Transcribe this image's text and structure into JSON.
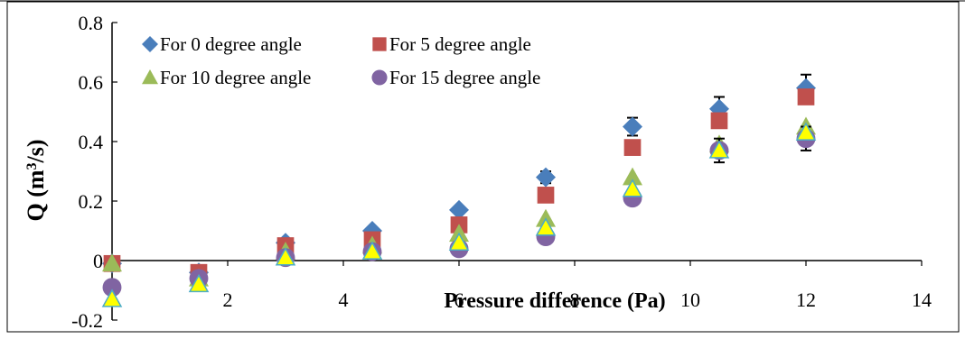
{
  "chart_data": {
    "type": "scatter",
    "xlabel": "Pressure difference (Pa)",
    "ylabel_main": "Q (m",
    "ylabel_sup": "3",
    "ylabel_end": "/s)",
    "xlim": [
      0,
      14
    ],
    "ylim": [
      -0.2,
      0.8
    ],
    "xticks": [
      0,
      2,
      4,
      6,
      8,
      10,
      12,
      14
    ],
    "yticks": [
      -0.2,
      0,
      0.2,
      0.4,
      0.6,
      0.8
    ],
    "ytick_labels": [
      "-0.2",
      "0",
      "0.2",
      "0.4",
      "0.6",
      "0.8"
    ],
    "legend_placement": "top-left",
    "grid": false,
    "series": [
      {
        "name": "For 0 degree angle",
        "marker": "diamond",
        "color": "#4a7ebb",
        "x": [
          0,
          1.5,
          3,
          4.5,
          6,
          7.5,
          9,
          10.5,
          12
        ],
        "y": [
          -0.01,
          -0.04,
          0.06,
          0.1,
          0.17,
          0.28,
          0.45,
          0.51,
          0.58
        ],
        "error": [
          0,
          0,
          0,
          0,
          0,
          0.02,
          0.03,
          0.04,
          0.045
        ]
      },
      {
        "name": "For 5 degree angle",
        "marker": "square",
        "color": "#c0504d",
        "x": [
          0,
          1.5,
          3,
          4.5,
          6,
          7.5,
          9,
          10.5,
          12
        ],
        "y": [
          -0.01,
          -0.04,
          0.05,
          0.07,
          0.12,
          0.22,
          0.38,
          0.47,
          0.55
        ],
        "error": [
          0,
          0,
          0,
          0,
          0,
          0,
          0,
          0,
          0
        ]
      },
      {
        "name": "For 10 degree angle",
        "marker": "triangle",
        "color": "#9bbb59",
        "x": [
          0,
          1.5,
          3,
          4.5,
          6,
          7.5,
          9,
          10.5,
          12
        ],
        "y": [
          -0.01,
          -0.06,
          0.03,
          0.05,
          0.09,
          0.14,
          0.28,
          0.39,
          0.45
        ],
        "error": [
          0,
          0,
          0,
          0,
          0,
          0,
          0,
          0,
          0
        ]
      },
      {
        "name": "For 15 degree angle",
        "marker": "circle",
        "color": "#8064a2",
        "x": [
          0,
          1.5,
          3,
          4.5,
          6,
          7.5,
          9,
          10.5,
          12
        ],
        "y": [
          -0.09,
          -0.06,
          0.01,
          0.03,
          0.04,
          0.08,
          0.21,
          0.37,
          0.41
        ],
        "error": [
          0,
          0,
          0,
          0,
          0,
          0,
          0,
          0.04,
          0.04
        ]
      },
      {
        "name": "",
        "marker": "triangle",
        "color": "#ffff00",
        "x": [
          0,
          1.5,
          3,
          4.5,
          6,
          7.5,
          9,
          10.5,
          12
        ],
        "y": [
          -0.13,
          -0.08,
          0.01,
          0.03,
          0.06,
          0.11,
          0.24,
          0.37,
          0.43
        ],
        "error": [
          0,
          0,
          0,
          0,
          0,
          0,
          0,
          0,
          0
        ]
      }
    ]
  }
}
